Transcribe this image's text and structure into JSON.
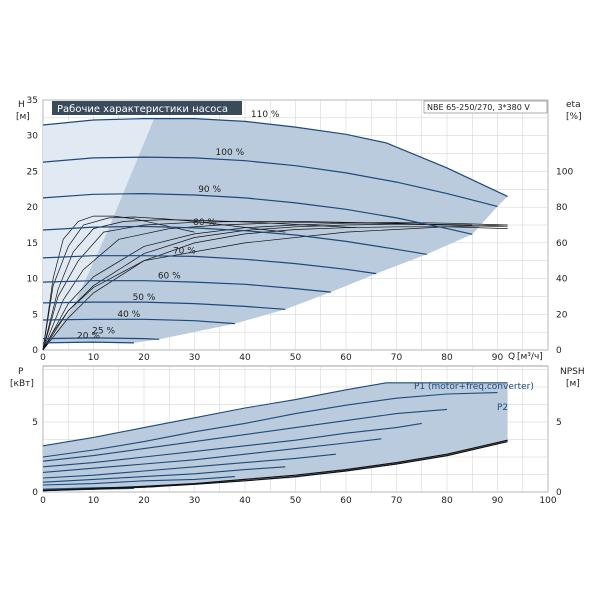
{
  "chart_data": [
    {
      "type": "line",
      "title": "Рабочие характеристики насоса",
      "model": "NBE 65-250/270, 3*380 V",
      "y_left_label": "H",
      "y_left_unit": "[м]",
      "y_right_label": "eta",
      "y_right_unit": "[%]",
      "x_label": "Q",
      "x_unit": "[м³/ч]",
      "xlim": [
        0,
        100
      ],
      "ylim": [
        0,
        35
      ],
      "y_right_lim": [
        0,
        140
      ],
      "x_ticks": [
        "0",
        "10",
        "20",
        "30",
        "40",
        "50",
        "60",
        "70",
        "80",
        "90"
      ],
      "y_ticks": [
        "0",
        "5",
        "10",
        "15",
        "20",
        "25",
        "30",
        "35"
      ],
      "y_right_ticks": [
        "0",
        "20",
        "40",
        "60",
        "80",
        "100"
      ],
      "grid": true,
      "series": [
        {
          "name": "110 %",
          "x": [
            0,
            10,
            20,
            30,
            40,
            50,
            60,
            68,
            80,
            92
          ],
          "y": [
            31.5,
            32.2,
            32.4,
            32.4,
            32.0,
            31.2,
            30.2,
            29.0,
            25.5,
            21.5
          ]
        },
        {
          "name": "100 %",
          "x": [
            0,
            10,
            20,
            30,
            40,
            50,
            60,
            70,
            80,
            90
          ],
          "y": [
            26.3,
            26.9,
            27.0,
            26.9,
            26.5,
            25.8,
            24.8,
            23.5,
            21.9,
            20.1
          ]
        },
        {
          "name": "90 %",
          "x": [
            0,
            10,
            20,
            30,
            40,
            50,
            60,
            70,
            80,
            85
          ],
          "y": [
            21.3,
            21.8,
            21.9,
            21.7,
            21.3,
            20.6,
            19.7,
            18.5,
            17.0,
            16.2
          ]
        },
        {
          "name": "80 %",
          "x": [
            0,
            10,
            20,
            30,
            40,
            50,
            60,
            70,
            76
          ],
          "y": [
            16.8,
            17.2,
            17.3,
            17.1,
            16.7,
            16.1,
            15.2,
            14.1,
            13.4
          ]
        },
        {
          "name": "70 %",
          "x": [
            0,
            10,
            20,
            30,
            40,
            50,
            60,
            66
          ],
          "y": [
            12.9,
            13.2,
            13.2,
            13.1,
            12.7,
            12.1,
            11.3,
            10.7
          ]
        },
        {
          "name": "60 %",
          "x": [
            0,
            10,
            20,
            30,
            40,
            50,
            57
          ],
          "y": [
            9.5,
            9.7,
            9.7,
            9.5,
            9.2,
            8.6,
            8.1
          ]
        },
        {
          "name": "50 %",
          "x": [
            0,
            10,
            20,
            30,
            40,
            48
          ],
          "y": [
            6.6,
            6.7,
            6.7,
            6.5,
            6.1,
            5.7
          ]
        },
        {
          "name": "40 %",
          "x": [
            0,
            10,
            20,
            30,
            38
          ],
          "y": [
            4.2,
            4.3,
            4.3,
            4.1,
            3.7
          ]
        },
        {
          "name": "25 %",
          "x": [
            0,
            10,
            20,
            23
          ],
          "y": [
            1.6,
            1.7,
            1.6,
            1.5
          ]
        },
        {
          "name": "20 %",
          "x": [
            0,
            10,
            18
          ],
          "y": [
            1.0,
            1.1,
            1.0
          ]
        }
      ],
      "efficiency_curves": [
        {
          "x": [
            0,
            5,
            10,
            20,
            30,
            40,
            50,
            60,
            70,
            80,
            92
          ],
          "y": [
            0,
            18,
            32,
            50,
            60,
            65,
            67.5,
            68.5,
            69,
            69,
            68
          ]
        },
        {
          "x": [
            0,
            5,
            10,
            20,
            30,
            40,
            50,
            60,
            70,
            80,
            92
          ],
          "y": [
            0,
            22,
            36,
            54,
            63,
            67,
            69,
            70,
            70.5,
            70,
            69
          ]
        },
        {
          "x": [
            0,
            5,
            10,
            20,
            30,
            40,
            50,
            60,
            70,
            80,
            92
          ],
          "y": [
            0,
            26,
            41,
            58,
            65,
            68.5,
            70,
            71,
            71.5,
            71,
            70
          ]
        },
        {
          "x": [
            0,
            4,
            8,
            15,
            25,
            35,
            45,
            55,
            65,
            75,
            85
          ],
          "y": [
            0,
            28,
            45,
            62,
            68,
            70,
            71,
            71.5,
            71,
            70.5,
            70
          ]
        },
        {
          "x": [
            0,
            3,
            7,
            12,
            20,
            30,
            40,
            50,
            60,
            70,
            80
          ],
          "y": [
            0,
            30,
            50,
            66,
            70,
            71.5,
            72,
            72,
            71.5,
            71,
            70
          ]
        },
        {
          "x": [
            0,
            3,
            6,
            10,
            16,
            24,
            32,
            42,
            52,
            62
          ],
          "y": [
            0,
            34,
            55,
            68,
            72,
            73,
            72.5,
            71.5,
            70,
            68.5
          ]
        },
        {
          "x": [
            0,
            2,
            5,
            8,
            13,
            18,
            24,
            30,
            36,
            42,
            48
          ],
          "y": [
            0,
            36,
            58,
            70,
            74,
            74.5,
            73.5,
            72,
            70,
            68,
            66
          ]
        },
        {
          "x": [
            0,
            2,
            4,
            7,
            10,
            14,
            18,
            22,
            26,
            30
          ],
          "y": [
            0,
            40,
            62,
            72,
            75,
            75,
            73.5,
            71,
            68.5,
            66
          ]
        },
        {
          "x": [
            0,
            2,
            5,
            10,
            20,
            40,
            60,
            80,
            92
          ],
          "y": [
            0,
            10,
            22,
            35,
            50,
            60,
            66,
            69,
            70
          ]
        }
      ]
    },
    {
      "type": "line",
      "y_left_label": "P",
      "y_left_unit": "[кВт]",
      "y_right_label": "NPSH",
      "y_right_unit": "[м]",
      "xlim": [
        0,
        100
      ],
      "ylim": [
        0,
        9
      ],
      "y_right_lim": [
        0,
        9
      ],
      "x_ticks": [
        "0",
        "10",
        "20",
        "30",
        "40",
        "50",
        "60",
        "70",
        "80",
        "90",
        "100"
      ],
      "y_ticks": [
        "0",
        "5"
      ],
      "y_right_ticks": [
        "0",
        "5"
      ],
      "grid": true,
      "series": [
        {
          "name": "P1 (motor+freq.converter)",
          "x": [
            0,
            10,
            20,
            30,
            40,
            50,
            60,
            68,
            80,
            92
          ],
          "y": [
            3.3,
            3.9,
            4.6,
            5.3,
            6.0,
            6.6,
            7.3,
            7.8,
            7.8,
            7.8
          ]
        },
        {
          "name": "P2",
          "x": [
            0,
            10,
            20,
            30,
            40,
            50,
            60,
            70,
            80,
            90
          ],
          "y": [
            2.5,
            3.0,
            3.6,
            4.3,
            4.9,
            5.6,
            6.2,
            6.7,
            7.0,
            7.1
          ]
        },
        {
          "name": "",
          "x": [
            0,
            10,
            20,
            30,
            40,
            50,
            60,
            70,
            80
          ],
          "y": [
            2.2,
            2.6,
            3.1,
            3.6,
            4.1,
            4.6,
            5.1,
            5.6,
            5.9
          ]
        },
        {
          "name": "",
          "x": [
            0,
            10,
            20,
            30,
            40,
            50,
            60,
            70,
            75
          ],
          "y": [
            1.8,
            2.1,
            2.5,
            2.9,
            3.3,
            3.7,
            4.2,
            4.6,
            4.9
          ]
        },
        {
          "name": "",
          "x": [
            0,
            10,
            20,
            30,
            40,
            50,
            60,
            67
          ],
          "y": [
            1.4,
            1.7,
            2.0,
            2.3,
            2.7,
            3.1,
            3.5,
            3.8
          ]
        },
        {
          "name": "",
          "x": [
            0,
            10,
            20,
            30,
            40,
            50,
            58
          ],
          "y": [
            1.0,
            1.2,
            1.5,
            1.8,
            2.1,
            2.4,
            2.7
          ]
        },
        {
          "name": "",
          "x": [
            0,
            10,
            20,
            30,
            40,
            48
          ],
          "y": [
            0.7,
            0.9,
            1.1,
            1.3,
            1.6,
            1.8
          ]
        },
        {
          "name": "",
          "x": [
            0,
            10,
            20,
            30,
            38
          ],
          "y": [
            0.5,
            0.6,
            0.8,
            0.9,
            1.1
          ]
        },
        {
          "name": "",
          "x": [
            0,
            10,
            20,
            23
          ],
          "y": [
            0.2,
            0.3,
            0.35,
            0.4
          ]
        },
        {
          "name": "",
          "x": [
            0,
            10,
            18
          ],
          "y": [
            0.15,
            0.2,
            0.25
          ]
        }
      ],
      "npsh_curves": [
        {
          "x": [
            0,
            10,
            20,
            30,
            40,
            50,
            60,
            70,
            80,
            92
          ],
          "y": [
            0.1,
            0.2,
            0.35,
            0.55,
            0.8,
            1.1,
            1.5,
            2.0,
            2.6,
            3.6
          ]
        },
        {
          "x": [
            0,
            10,
            20,
            30,
            40,
            50,
            60,
            70,
            80,
            92
          ],
          "y": [
            0.1,
            0.25,
            0.4,
            0.6,
            0.9,
            1.2,
            1.6,
            2.1,
            2.7,
            3.7
          ]
        }
      ]
    }
  ],
  "colors": {
    "curve": "#1d4a7a",
    "area": "#b9cbdd",
    "area_light": "#e1eaf3",
    "black": "#111111",
    "grid": "#cfcfcf",
    "header_bg": "#3a4b5c",
    "header_fg": "#ffffff"
  }
}
